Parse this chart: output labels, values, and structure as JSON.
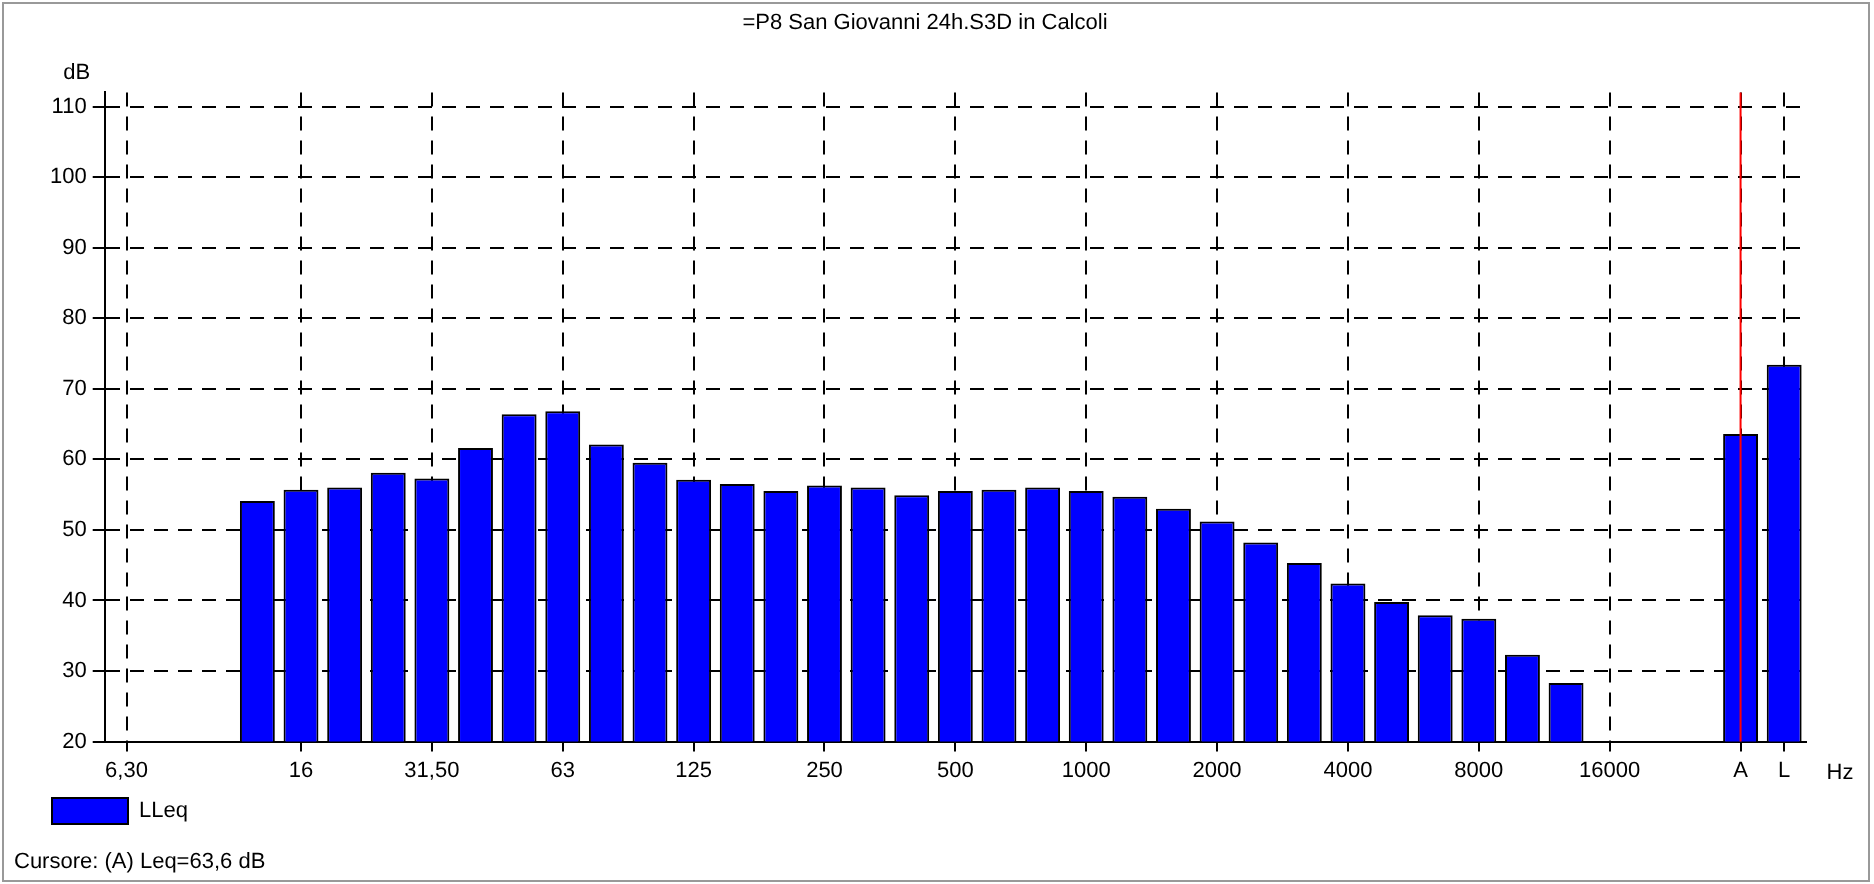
{
  "chart_data": {
    "type": "bar",
    "title": "=P8 San Giovanni 24h.S3D in Calcoli",
    "ylabel": "dB",
    "xlabel": "Hz",
    "categories": [
      "6,30",
      null,
      null,
      null,
      "16",
      null,
      null,
      "31,50",
      null,
      null,
      "63",
      null,
      null,
      "125",
      null,
      null,
      "250",
      null,
      null,
      "500",
      null,
      null,
      "1000",
      null,
      null,
      "2000",
      null,
      null,
      "4000",
      null,
      null,
      "8000",
      null,
      null,
      "16000",
      null,
      null,
      "A",
      "L"
    ],
    "series": [
      {
        "name": "LLeq",
        "color": "#0000ff",
        "values": [
          null,
          null,
          null,
          54.1,
          55.7,
          56.0,
          58.1,
          57.3,
          61.6,
          66.4,
          66.8,
          62.1,
          59.5,
          57.1,
          56.5,
          55.5,
          56.3,
          56.0,
          54.9,
          55.5,
          55.7,
          56.0,
          55.5,
          54.7,
          53.0,
          51.2,
          48.2,
          45.3,
          42.4,
          39.8,
          37.9,
          37.4,
          32.3,
          28.3,
          null,
          null,
          null,
          63.6,
          73.4
        ]
      }
    ],
    "ylim": [
      20,
      112
    ],
    "yticks": [
      20,
      30,
      40,
      50,
      60,
      70,
      80,
      90,
      100,
      110
    ],
    "grid": true,
    "line_style": "dashed",
    "legend": "bottom left",
    "ref_lines": [
      {
        "axis": "x",
        "value": "A",
        "color": "#ff0000"
      }
    ],
    "annotations": [
      "Cursore: (A)  Leq=63,6 dB"
    ]
  }
}
